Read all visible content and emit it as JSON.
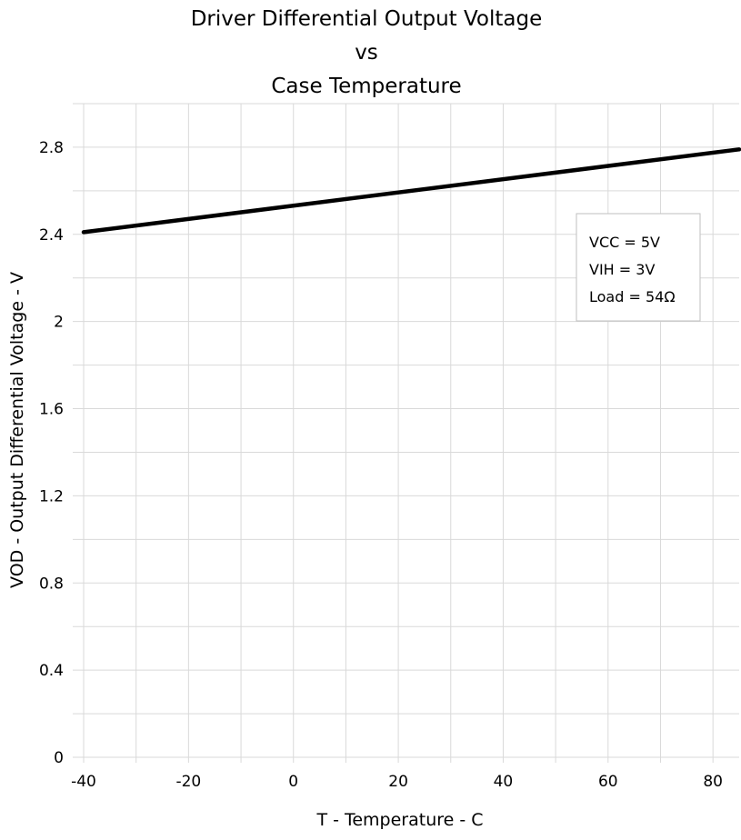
{
  "chart_data": {
    "type": "line",
    "title": [
      "Driver Differential Output Voltage",
      "vs",
      "Case Temperature"
    ],
    "xlabel": "T - Temperature - C",
    "ylabel": "VOD - Output Differential Voltage - V",
    "xlim": [
      -40,
      85
    ],
    "ylim": [
      0,
      3
    ],
    "xticks": [
      -40,
      -20,
      0,
      20,
      40,
      60,
      80
    ],
    "xtick_labels": [
      "-40",
      "-20",
      "0",
      "20",
      "40",
      "60",
      "80"
    ],
    "yticks": [
      0,
      0.4,
      0.8,
      1.2,
      1.6,
      2,
      2.4,
      2.8
    ],
    "ytick_labels": [
      "0",
      "0.4",
      "0.8",
      "1.2",
      "1.6",
      "2",
      "2.4",
      "2.8"
    ],
    "grid": true,
    "grid_x_step": 10,
    "grid_y_step": 0.2,
    "series": [
      {
        "x": [
          -40,
          85
        ],
        "y": [
          2.41,
          2.79
        ],
        "color": "#000000"
      }
    ],
    "annotation": [
      "VCC = 5V",
      "VIH = 3V",
      "Load = 54Ω"
    ],
    "annotation_placement": "upper-right"
  }
}
